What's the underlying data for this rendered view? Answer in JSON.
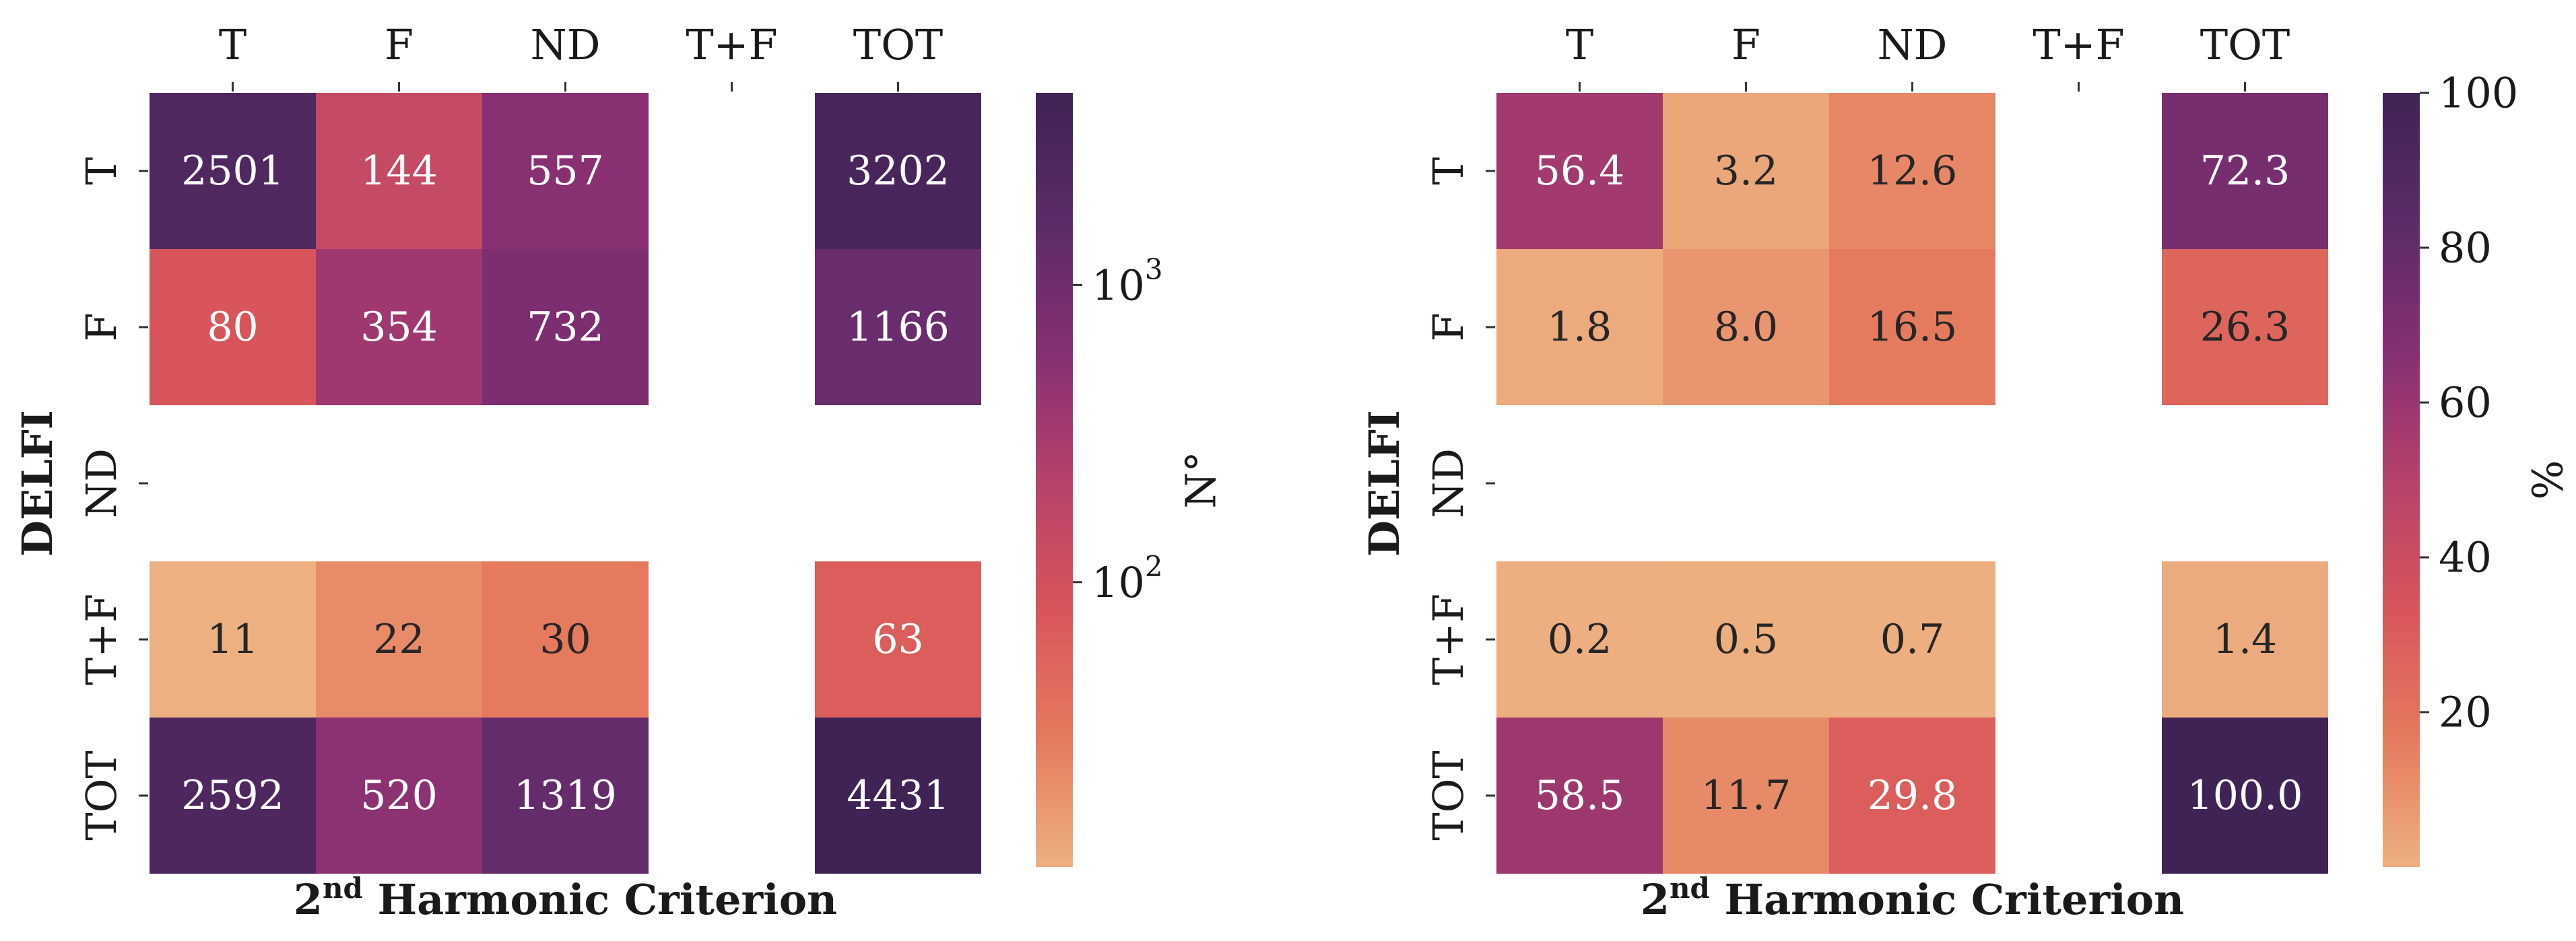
{
  "chart_data": [
    {
      "type": "heatmap",
      "title": "",
      "xlabel": "2",
      "xlabel_superscript": "nd",
      "xlabel_rest": " Harmonic Criterion",
      "ylabel": "DELFI",
      "x_categories": [
        "T",
        "F",
        "ND",
        "T+F",
        "TOT"
      ],
      "y_categories": [
        "T",
        "F",
        "ND",
        "T+F",
        "TOT"
      ],
      "values": [
        [
          2501,
          144,
          557,
          null,
          3202
        ],
        [
          80,
          354,
          732,
          null,
          1166
        ],
        [
          null,
          null,
          null,
          null,
          null
        ],
        [
          11,
          22,
          30,
          null,
          63
        ],
        [
          2592,
          520,
          1319,
          null,
          4431
        ]
      ],
      "cell_labels": [
        [
          "2501",
          "144",
          "557",
          "",
          "3202"
        ],
        [
          "80",
          "354",
          "732",
          "",
          "1166"
        ],
        [
          "",
          "",
          "",
          "",
          ""
        ],
        [
          "11",
          "22",
          "30",
          "",
          "63"
        ],
        [
          "2592",
          "520",
          "1319",
          "",
          "4431"
        ]
      ],
      "colorbar": {
        "label": "N°",
        "scale": "log",
        "range": [
          11,
          4431
        ],
        "ticks": [
          {
            "value": 100,
            "base": "10",
            "exp": "2"
          },
          {
            "value": 1000,
            "base": "10",
            "exp": "3"
          }
        ]
      }
    },
    {
      "type": "heatmap",
      "title": "",
      "xlabel": "2",
      "xlabel_superscript": "nd",
      "xlabel_rest": " Harmonic Criterion",
      "ylabel": "DELFI",
      "x_categories": [
        "T",
        "F",
        "ND",
        "T+F",
        "TOT"
      ],
      "y_categories": [
        "T",
        "F",
        "ND",
        "T+F",
        "TOT"
      ],
      "values": [
        [
          56.4,
          3.2,
          12.6,
          null,
          72.3
        ],
        [
          1.8,
          8.0,
          16.5,
          null,
          26.3
        ],
        [
          null,
          null,
          null,
          null,
          null
        ],
        [
          0.2,
          0.5,
          0.7,
          null,
          1.4
        ],
        [
          58.5,
          11.7,
          29.8,
          null,
          100.0
        ]
      ],
      "cell_labels": [
        [
          "56.4",
          "3.2",
          "12.6",
          "",
          "72.3"
        ],
        [
          "1.8",
          "8.0",
          "16.5",
          "",
          "26.3"
        ],
        [
          "",
          "",
          "",
          "",
          ""
        ],
        [
          "0.2",
          "0.5",
          "0.7",
          "",
          "1.4"
        ],
        [
          "58.5",
          "11.7",
          "29.8",
          "",
          "100.0"
        ]
      ],
      "colorbar": {
        "label": "%",
        "scale": "linear",
        "range": [
          0,
          100
        ],
        "ticks": [
          {
            "value": 20,
            "label": "20"
          },
          {
            "value": 40,
            "label": "40"
          },
          {
            "value": 60,
            "label": "60"
          },
          {
            "value": 80,
            "label": "80"
          },
          {
            "value": 100,
            "label": "100"
          }
        ]
      }
    }
  ],
  "colormap": [
    "#edb081",
    "#e57a5e",
    "#d8555b",
    "#b6416b",
    "#852f73",
    "#5b2b68",
    "#3f2355"
  ]
}
